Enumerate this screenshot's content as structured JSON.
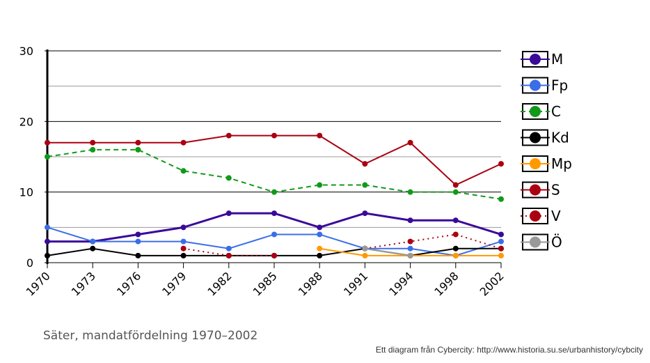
{
  "caption": "Säter, mandatfördelning 1970–2002",
  "credit": "Ett diagram från Cybercity: http://www.historia.su.se/urbanhistory/cybcity",
  "chart_data": {
    "type": "line",
    "title": "",
    "xlabel": "",
    "ylabel": "",
    "ylim": [
      0,
      30
    ],
    "yticks": [
      0,
      10,
      20,
      30
    ],
    "grid": true,
    "legend_position": "right",
    "categories": [
      "1970",
      "1973",
      "1976",
      "1979",
      "1982",
      "1985",
      "1988",
      "1991",
      "1994",
      "1998",
      "2002"
    ],
    "series": [
      {
        "name": "M",
        "color": "#3a0a9a",
        "style": "solid",
        "values": [
          3,
          3,
          4,
          5,
          7,
          7,
          5,
          7,
          6,
          6,
          4
        ]
      },
      {
        "name": "Fp",
        "color": "#3a6ee8",
        "style": "solid",
        "values": [
          5,
          3,
          3,
          3,
          2,
          4,
          4,
          2,
          2,
          1,
          3
        ]
      },
      {
        "name": "C",
        "color": "#11991a",
        "style": "dashed",
        "values": [
          15,
          16,
          16,
          13,
          12,
          10,
          11,
          11,
          10,
          10,
          9
        ]
      },
      {
        "name": "Kd",
        "color": "#000000",
        "style": "solid",
        "values": [
          1,
          2,
          1,
          1,
          1,
          1,
          1,
          2,
          1,
          2,
          2
        ]
      },
      {
        "name": "Mp",
        "color": "#ff9900",
        "style": "solid",
        "values": [
          null,
          null,
          null,
          null,
          null,
          null,
          2,
          1,
          1,
          1,
          1
        ]
      },
      {
        "name": "S",
        "color": "#aa0011",
        "style": "solid",
        "values": [
          17,
          17,
          17,
          17,
          18,
          18,
          18,
          14,
          17,
          11,
          14
        ]
      },
      {
        "name": "V",
        "color": "#aa0011",
        "style": "dotted",
        "values": [
          null,
          null,
          null,
          2,
          1,
          1,
          null,
          2,
          3,
          4,
          2
        ]
      },
      {
        "name": "Ö",
        "color": "#999999",
        "style": "solid",
        "values": [
          null,
          null,
          null,
          null,
          null,
          null,
          null,
          2,
          1,
          null,
          null
        ]
      }
    ]
  }
}
